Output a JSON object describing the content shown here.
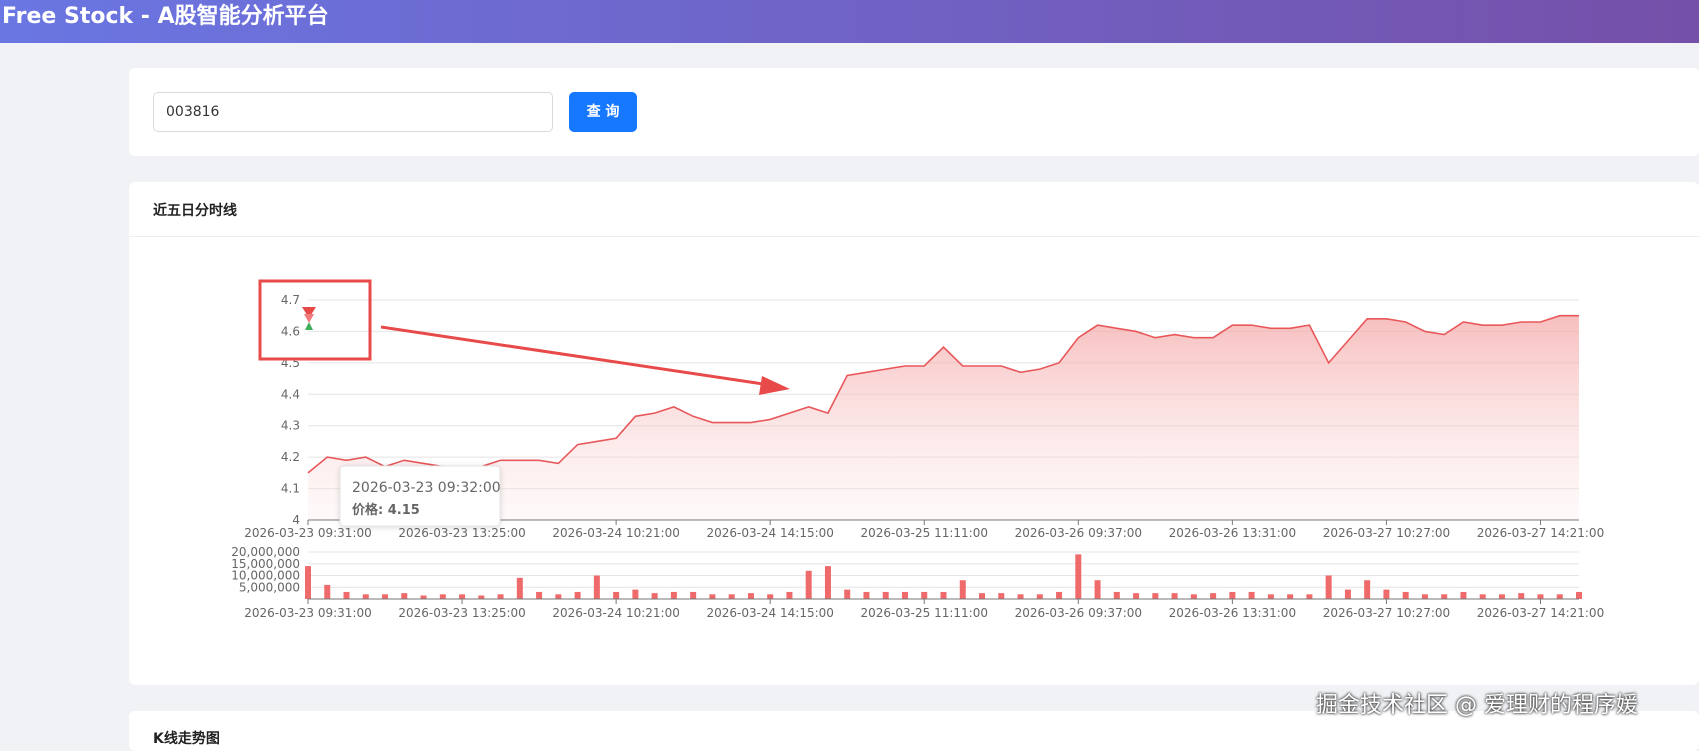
{
  "header": {
    "title": "Free Stock - A股智能分析平台"
  },
  "search": {
    "input": "003816",
    "button": "查 询"
  },
  "panel": {
    "title": "近五日分时线"
  },
  "next_panel": {
    "title": "K线走势图"
  },
  "watermark": "掘金技术社区 @ 爱理财的程序媛",
  "chart_data": [
    {
      "type": "line",
      "categories": [
        "2026-03-23 09:31:00",
        null,
        null,
        null,
        null,
        null,
        null,
        null,
        "2026-03-23 13:25:00",
        null,
        null,
        null,
        null,
        null,
        null,
        null,
        "2026-03-24 10:21:00",
        null,
        null,
        null,
        null,
        null,
        null,
        null,
        "2026-03-24 14:15:00",
        null,
        null,
        null,
        null,
        null,
        null,
        null,
        "2026-03-25 11:11:00",
        null,
        null,
        null,
        null,
        null,
        null,
        null,
        "2026-03-26 09:37:00",
        null,
        null,
        null,
        null,
        null,
        null,
        null,
        "2026-03-26 13:31:00",
        null,
        null,
        null,
        null,
        null,
        null,
        null,
        "2026-03-27 10:27:00",
        null,
        null,
        null,
        null,
        null,
        null,
        null,
        "2026-03-27 14:21:00",
        null,
        null
      ],
      "series": [
        {
          "color": "#e8585a",
          "values": [
            4.15,
            4.2,
            4.19,
            4.2,
            4.17,
            4.19,
            4.18,
            4.17,
            4.17,
            4.17,
            4.19,
            4.19,
            4.19,
            4.18,
            4.24,
            4.25,
            4.26,
            4.33,
            4.34,
            4.36,
            4.33,
            4.31,
            4.31,
            4.31,
            4.32,
            4.34,
            4.36,
            4.34,
            4.46,
            4.47,
            4.48,
            4.49,
            4.49,
            4.55,
            4.49,
            4.49,
            4.49,
            4.47,
            4.48,
            4.5,
            4.58,
            4.62,
            4.61,
            4.6,
            4.58,
            4.59,
            4.58,
            4.58,
            4.62,
            4.62,
            4.61,
            4.61,
            4.62,
            4.5,
            4.57,
            4.64,
            4.64,
            4.63,
            4.6,
            4.59,
            4.63,
            4.62,
            4.62,
            4.63,
            4.63,
            4.65,
            4.65
          ]
        }
      ],
      "ylim": [
        4,
        4.7
      ],
      "yticks": [
        4,
        4.1,
        4.2,
        4.3,
        4.4,
        4.5,
        4.6,
        4.7
      ],
      "grid": true,
      "tooltip": {
        "title": "2026-03-23 09:32:00",
        "text": "价格: 4.15"
      }
    },
    {
      "type": "bar",
      "categories": [
        "2026-03-23 09:31:00",
        null,
        null,
        null,
        null,
        null,
        null,
        null,
        "2026-03-23 13:25:00",
        null,
        null,
        null,
        null,
        null,
        null,
        null,
        "2026-03-24 10:21:00",
        null,
        null,
        null,
        null,
        null,
        null,
        null,
        "2026-03-24 14:15:00",
        null,
        null,
        null,
        null,
        null,
        null,
        null,
        "2026-03-25 11:11:00",
        null,
        null,
        null,
        null,
        null,
        null,
        null,
        "2026-03-26 09:37:00",
        null,
        null,
        null,
        null,
        null,
        null,
        null,
        "2026-03-26 13:31:00",
        null,
        null,
        null,
        null,
        null,
        null,
        null,
        "2026-03-27 10:27:00",
        null,
        null,
        null,
        null,
        null,
        null,
        null,
        "2026-03-27 14:21:00",
        null,
        null
      ],
      "series": [
        {
          "color": "#ef6b6b",
          "values": [
            14000000,
            6000000,
            3000000,
            2000000,
            2000000,
            2500000,
            1500000,
            2000000,
            2000000,
            1500000,
            2000000,
            9000000,
            3000000,
            2000000,
            3000000,
            10000000,
            3000000,
            4000000,
            2500000,
            3000000,
            3000000,
            2000000,
            2000000,
            2500000,
            2000000,
            3000000,
            12000000,
            14000000,
            4000000,
            3000000,
            3000000,
            3000000,
            3000000,
            3000000,
            8000000,
            2500000,
            2500000,
            2000000,
            2000000,
            3000000,
            19000000,
            8000000,
            3000000,
            2500000,
            2500000,
            2500000,
            2000000,
            2500000,
            3000000,
            3000000,
            2000000,
            2000000,
            2000000,
            10000000,
            4000000,
            8000000,
            4000000,
            3000000,
            2000000,
            2000000,
            3000000,
            2000000,
            2000000,
            2500000,
            2000000,
            2000000,
            3000000
          ]
        }
      ],
      "ylim": [
        0,
        20000000
      ],
      "yticks": [
        {
          "value": 5000000,
          "label": "5,000,000"
        },
        {
          "value": 10000000,
          "label": "10,000,000"
        },
        {
          "value": 15000000,
          "label": "15,000,000"
        },
        {
          "value": 20000000,
          "label": "20,000,000"
        }
      ],
      "grid": true
    }
  ]
}
